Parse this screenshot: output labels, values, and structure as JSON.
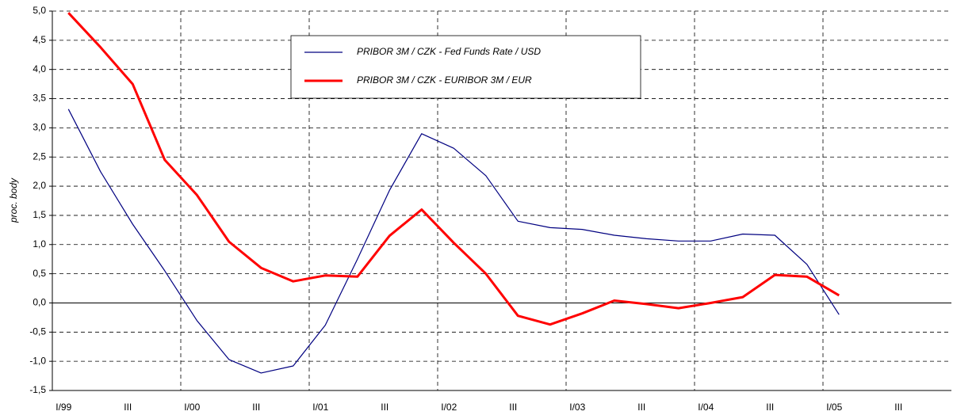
{
  "chart_data": {
    "type": "line",
    "y_label": "proc. body",
    "categories": [
      "I/99",
      null,
      "III",
      null,
      "I/00",
      null,
      "III",
      null,
      "I/01",
      null,
      "III",
      null,
      "I/02",
      null,
      "III",
      null,
      "I/03",
      null,
      "III",
      null,
      "I/04",
      null,
      "III",
      null,
      "I/05",
      null,
      "III",
      null
    ],
    "series": [
      {
        "name": "PRIBOR 3M / CZK - Fed Funds Rate / USD",
        "color": "#000080",
        "width": 1.2,
        "values": [
          3.32,
          2.25,
          1.35,
          0.55,
          -0.3,
          -0.97,
          -1.2,
          -1.08,
          -0.38,
          0.75,
          1.93,
          2.9,
          2.65,
          2.18,
          1.4,
          1.29,
          1.26,
          1.16,
          1.1,
          1.06,
          1.06,
          1.18,
          1.16,
          0.66,
          -0.2,
          null,
          null,
          null
        ]
      },
      {
        "name": "PRIBOR 3M / CZK - EURIBOR 3M / EUR",
        "color": "#ff0000",
        "width": 3,
        "values": [
          4.97,
          4.38,
          3.75,
          2.45,
          1.85,
          1.05,
          0.6,
          0.37,
          0.47,
          0.45,
          1.15,
          1.6,
          1.03,
          0.5,
          -0.22,
          -0.37,
          -0.18,
          0.04,
          -0.02,
          -0.09,
          0.0,
          0.1,
          0.48,
          0.45,
          0.13,
          null,
          null,
          null
        ]
      }
    ],
    "ylim": [
      -1.5,
      5
    ],
    "yticks": [
      {
        "value": -1.5,
        "label": "-1,5"
      },
      {
        "value": -1,
        "label": "-1,0"
      },
      {
        "value": -0.5,
        "label": "-0,5"
      },
      {
        "value": 0,
        "label": "0,0"
      },
      {
        "value": 0.5,
        "label": "0,5"
      },
      {
        "value": 1,
        "label": "1,0"
      },
      {
        "value": 1.5,
        "label": "1,5"
      },
      {
        "value": 2,
        "label": "2,0"
      },
      {
        "value": 2.5,
        "label": "2,5"
      },
      {
        "value": 3,
        "label": "3,0"
      },
      {
        "value": 3.5,
        "label": "3,5"
      },
      {
        "value": 4,
        "label": "4,0"
      },
      {
        "value": 4.5,
        "label": "4,5"
      },
      {
        "value": 5,
        "label": "5,0"
      }
    ],
    "grid": true
  }
}
